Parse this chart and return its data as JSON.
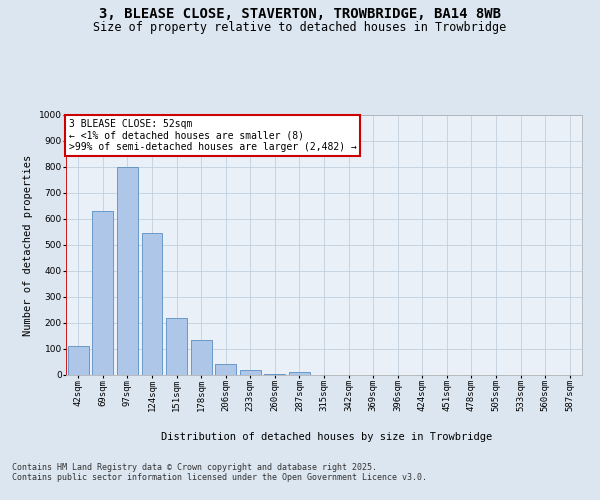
{
  "title": "3, BLEASE CLOSE, STAVERTON, TROWBRIDGE, BA14 8WB",
  "subtitle": "Size of property relative to detached houses in Trowbridge",
  "xlabel": "Distribution of detached houses by size in Trowbridge",
  "ylabel": "Number of detached properties",
  "categories": [
    "42sqm",
    "69sqm",
    "97sqm",
    "124sqm",
    "151sqm",
    "178sqm",
    "206sqm",
    "233sqm",
    "260sqm",
    "287sqm",
    "315sqm",
    "342sqm",
    "369sqm",
    "396sqm",
    "424sqm",
    "451sqm",
    "478sqm",
    "505sqm",
    "533sqm",
    "560sqm",
    "587sqm"
  ],
  "values": [
    110,
    630,
    800,
    545,
    220,
    135,
    42,
    18,
    5,
    10,
    0,
    0,
    0,
    0,
    0,
    0,
    0,
    0,
    0,
    0,
    0
  ],
  "bar_color": "#aec6e8",
  "bar_edge_color": "#5a8fc2",
  "ylim": [
    0,
    1000
  ],
  "yticks": [
    0,
    100,
    200,
    300,
    400,
    500,
    600,
    700,
    800,
    900,
    1000
  ],
  "annotation_text": "3 BLEASE CLOSE: 52sqm\n← <1% of detached houses are smaller (8)\n>99% of semi-detached houses are larger (2,482) →",
  "annotation_box_color": "#ffffff",
  "annotation_box_edge_color": "#cc0000",
  "background_color": "#dce6f0",
  "plot_background_color": "#eaf0f8",
  "grid_color": "#b8c8d8",
  "footer_text": "Contains HM Land Registry data © Crown copyright and database right 2025.\nContains public sector information licensed under the Open Government Licence v3.0.",
  "title_fontsize": 10,
  "subtitle_fontsize": 8.5,
  "axis_label_fontsize": 7.5,
  "tick_fontsize": 6.5,
  "annotation_fontsize": 7,
  "footer_fontsize": 6
}
